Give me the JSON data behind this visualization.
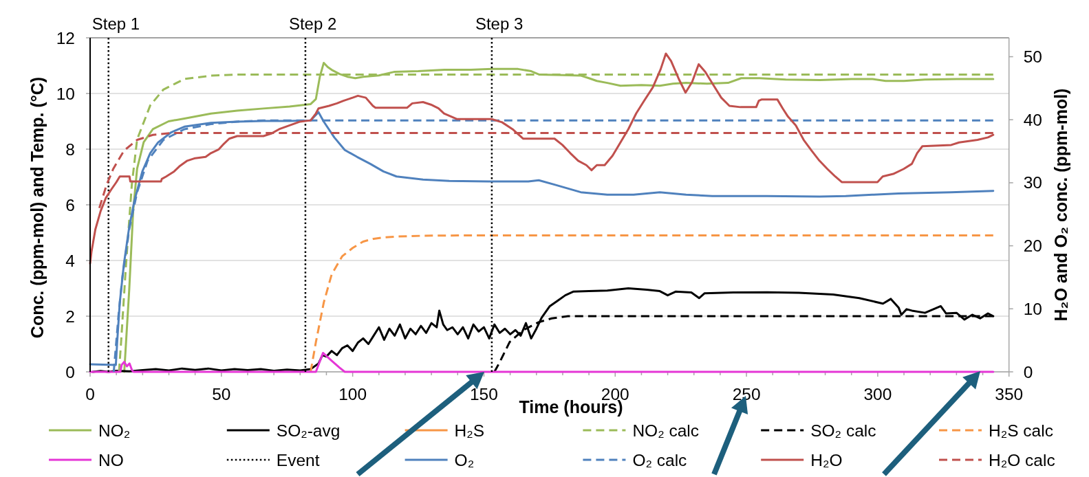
{
  "chart_data": {
    "type": "line",
    "xlabel": "Time (hours)",
    "ylabel": "Conc. (ppm-mol)  and Temp. (°C)",
    "y2label": "H₂O and O₂ conc. (ppm-mol)",
    "xlim": [
      0,
      350
    ],
    "xticks": [
      0,
      {
        "value": 10,
        "label": null
      },
      {
        "value": 20,
        "label": null
      },
      {
        "value": 30,
        "label": null
      },
      {
        "value": 40,
        "label": null
      },
      50,
      {
        "value": 60,
        "label": null
      },
      {
        "value": 70,
        "label": null
      },
      {
        "value": 80,
        "label": null
      },
      {
        "value": 90,
        "label": null
      },
      100,
      {
        "value": 110,
        "label": null
      },
      {
        "value": 120,
        "label": null
      },
      {
        "value": 130,
        "label": null
      },
      {
        "value": 140,
        "label": null
      },
      150,
      {
        "value": 160,
        "label": null
      },
      {
        "value": 170,
        "label": null
      },
      {
        "value": 180,
        "label": null
      },
      {
        "value": 190,
        "label": null
      },
      200,
      {
        "value": 210,
        "label": null
      },
      {
        "value": 220,
        "label": null
      },
      {
        "value": 230,
        "label": null
      },
      {
        "value": 240,
        "label": null
      },
      250,
      {
        "value": 260,
        "label": null
      },
      {
        "value": 270,
        "label": null
      },
      {
        "value": 280,
        "label": null
      },
      {
        "value": 290,
        "label": null
      },
      300,
      {
        "value": 310,
        "label": null
      },
      {
        "value": 320,
        "label": null
      },
      {
        "value": 330,
        "label": null
      },
      {
        "value": 340,
        "label": null
      },
      350
    ],
    "ylim": [
      0,
      12
    ],
    "yticks": [
      0,
      2,
      4,
      6,
      8,
      10,
      12
    ],
    "y2lim": [
      0,
      53
    ],
    "y2ticks": [
      0,
      10,
      20,
      30,
      40,
      50
    ],
    "grid": "y",
    "legend": "bottom",
    "annotations": [
      {
        "text": "Step 1",
        "x": 7,
        "y": 12
      },
      {
        "text": "Step 2",
        "x": 82,
        "y": 12
      },
      {
        "text": "Step 3",
        "x": 153,
        "y": 12
      }
    ],
    "series": [
      {
        "name": "NO₂",
        "color": "#9bbb59",
        "x": [
          13,
          14.9,
          16.4,
          17.9,
          20.4,
          23.9,
          29.9,
          35.9,
          46,
          56,
          66,
          76,
          84,
          86,
          87.5,
          89,
          90.5,
          92,
          95,
          98,
          101,
          104,
          110,
          116,
          125,
          135,
          145,
          153,
          163,
          168,
          171,
          180,
          187,
          190,
          193,
          197,
          202,
          210,
          217,
          222,
          227,
          235,
          243,
          248,
          255,
          265,
          278,
          290,
          298,
          303,
          310,
          318,
          330,
          344
        ],
        "values": [
          0,
          2.96,
          5.79,
          7.3,
          8.25,
          8.72,
          9.0,
          9.1,
          9.28,
          9.38,
          9.46,
          9.53,
          9.62,
          9.8,
          10.6,
          11.1,
          10.95,
          10.85,
          10.7,
          10.6,
          10.55,
          10.6,
          10.65,
          10.78,
          10.8,
          10.85,
          10.85,
          10.88,
          10.88,
          10.8,
          10.68,
          10.66,
          10.64,
          10.55,
          10.45,
          10.38,
          10.28,
          10.3,
          10.28,
          10.35,
          10.38,
          10.35,
          10.38,
          10.55,
          10.55,
          10.5,
          10.48,
          10.52,
          10.52,
          10.45,
          10.45,
          10.5,
          10.52,
          10.52
        ]
      },
      {
        "name": "SO₂-avg",
        "color": "#000000",
        "x": [
          1,
          4,
          7,
          10,
          15,
          20,
          25,
          30,
          35,
          40,
          45,
          50,
          55,
          60,
          65,
          70,
          75,
          80,
          84,
          87,
          88.5,
          90,
          92,
          94,
          96,
          98,
          100,
          102,
          104,
          106,
          108,
          110,
          112,
          114,
          116,
          118,
          120,
          122,
          124,
          126,
          128,
          130,
          132,
          133,
          134.5,
          136,
          138,
          140,
          142,
          144,
          146,
          148,
          150,
          152,
          154,
          156,
          158,
          160,
          162,
          164,
          166,
          168,
          170,
          172,
          175,
          178,
          181,
          184,
          190,
          197,
          205,
          212,
          217,
          220,
          223,
          229,
          232,
          234,
          245,
          258,
          270,
          283,
          293,
          302,
          305,
          308,
          309,
          311,
          313,
          318,
          324,
          326,
          330,
          333,
          336,
          339,
          342,
          344
        ],
        "values": [
          0,
          0.03,
          0,
          0.04,
          0.02,
          0.06,
          0.1,
          0.05,
          0.12,
          0.07,
          0.12,
          0.05,
          0.1,
          0.06,
          0.1,
          0.04,
          0.08,
          0.05,
          0.1,
          0.3,
          0.6,
          0.55,
          0.75,
          0.6,
          0.85,
          0.95,
          0.75,
          1.05,
          1.2,
          1.0,
          1.3,
          1.6,
          1.15,
          1.55,
          1.3,
          1.7,
          1.2,
          1.55,
          1.35,
          1.65,
          1.4,
          1.75,
          1.6,
          2.2,
          1.7,
          1.5,
          1.6,
          1.35,
          1.6,
          1.2,
          1.7,
          1.45,
          1.6,
          1.2,
          1.7,
          1.4,
          1.55,
          1.35,
          1.5,
          1.3,
          1.75,
          1.2,
          1.55,
          1.95,
          2.35,
          2.55,
          2.75,
          2.88,
          2.9,
          2.92,
          3.0,
          2.95,
          2.9,
          2.75,
          2.88,
          2.85,
          2.65,
          2.82,
          2.85,
          2.86,
          2.84,
          2.78,
          2.65,
          2.45,
          2.62,
          2.3,
          2.05,
          2.25,
          2.2,
          2.12,
          2.36,
          2.1,
          2.12,
          1.88,
          2.05,
          1.92,
          2.1,
          2.0
        ]
      },
      {
        "name": "H₂S",
        "color": "#f79646"
      },
      {
        "name": "NO₂ calc",
        "color": "#9bbb59",
        "line_style": "dashed",
        "x": [
          11,
          11.8,
          13.7,
          15.9,
          17.9,
          22.9,
          27.9,
          35.9,
          46,
          56,
          344
        ],
        "values": [
          0,
          1.07,
          3.9,
          6.74,
          8.35,
          9.57,
          10.14,
          10.52,
          10.64,
          10.68,
          10.68
        ]
      },
      {
        "name": "SO₂ calc",
        "color": "#000000",
        "line_style": "dashed",
        "x": [
          154,
          155.8,
          159.8,
          165,
          170.8,
          175.8,
          182,
          344
        ],
        "values": [
          0,
          0.31,
          1.07,
          1.5,
          1.78,
          1.92,
          2.0,
          2.0
        ]
      },
      {
        "name": "H₂S calc",
        "color": "#f79646",
        "line_style": "dashed",
        "x": [
          84,
          86,
          89,
          92,
          96,
          100,
          104,
          108,
          112,
          117,
          127,
          140,
          344
        ],
        "values": [
          0,
          1.07,
          2.49,
          3.5,
          4.15,
          4.45,
          4.68,
          4.78,
          4.83,
          4.86,
          4.89,
          4.9,
          4.9
        ]
      },
      {
        "name": "NO",
        "color": "#e536d6",
        "x": [
          0,
          11.5,
          12,
          13,
          14,
          15,
          16,
          16.5,
          86,
          88.7,
          92,
          95,
          97,
          344
        ],
        "values": [
          0,
          0,
          0.25,
          0.36,
          0.2,
          0.3,
          0.05,
          0,
          0,
          0.68,
          0.4,
          0.15,
          0,
          0
        ]
      },
      {
        "name": "Event",
        "color": "#000000",
        "line_style": "dotted",
        "x": [
          7,
          7,
          null,
          82,
          82,
          null,
          153,
          153
        ],
        "values": [
          0,
          12,
          null,
          0,
          12,
          null,
          0,
          12
        ]
      },
      {
        "name": "O₂",
        "color": "#4f81bd",
        "axis": "y2",
        "x": [
          0,
          9.8,
          10.3,
          11.3,
          12.9,
          14.9,
          16.9,
          19.9,
          22.9,
          25.9,
          30.9,
          35.9,
          46,
          56,
          66,
          76,
          84,
          87,
          89,
          93,
          97,
          101.7,
          106.7,
          111.7,
          116.7,
          126.8,
          136.8,
          151.8,
          166.9,
          170.9,
          176.9,
          186.9,
          197,
          207,
          217,
          227,
          237,
          257.7,
          277.8,
          287.8,
          297.9,
          307.9,
          328,
          344
        ],
        "values": [
          1.2,
          1.1,
          4.7,
          11,
          17.2,
          23,
          27.2,
          31.8,
          34.7,
          36.4,
          38,
          38.9,
          39.5,
          39.7,
          39.8,
          39.8,
          39.9,
          41.2,
          39.7,
          37.2,
          35.2,
          34.1,
          33,
          31.8,
          31,
          30.5,
          30.3,
          30.2,
          30.2,
          30.4,
          29.7,
          28.5,
          28.1,
          28.1,
          28.5,
          28.1,
          27.9,
          27.9,
          27.8,
          27.9,
          28.1,
          28.3,
          28.5,
          28.7
        ]
      },
      {
        "name": "O₂ calc",
        "color": "#4f81bd",
        "axis": "y2",
        "line_style": "dashed",
        "x": [
          9,
          10.8,
          12.3,
          14.9,
          17.9,
          21.9,
          27.9,
          35.9,
          46,
          56,
          66,
          344
        ],
        "values": [
          0,
          8.9,
          15.1,
          22.6,
          28.5,
          33.5,
          36.8,
          38.5,
          39.3,
          39.7,
          39.9,
          39.9
        ]
      },
      {
        "name": "H₂O",
        "color": "#c0504d",
        "axis": "y2",
        "x": [
          0,
          0.5,
          2,
          4,
          6,
          8,
          10,
          11.3,
          15,
          15.3,
          27,
          27.3,
          29,
          32,
          34,
          37,
          40,
          44,
          46,
          49,
          51,
          53,
          56,
          66,
          69,
          72,
          76,
          80,
          84,
          86,
          87,
          91,
          94,
          96.5,
          100,
          102,
          105,
          107.7,
          108.7,
          120.7,
          122.7,
          126.8,
          129.8,
          132.7,
          134.8,
          139.8,
          152.9,
          156.9,
          160.9,
          164.9,
          176.9,
          179.9,
          182.9,
          185.9,
          189,
          191,
          193,
          196,
          199,
          202,
          205,
          208,
          211,
          214.3,
          217.3,
          219.3,
          221.3,
          224.3,
          226.8,
          229.3,
          231.8,
          234.3,
          237.4,
          240.4,
          243.5,
          247.7,
          253.7,
          254.7,
          255.7,
          261.8,
          263.8,
          265.8,
          268.8,
          271.8,
          274.8,
          277.8,
          280.8,
          283.8,
          286.3,
          299.9,
          301.9,
          305.9,
          309.9,
          313,
          315,
          317,
          328,
          331,
          338,
          342,
          344
        ],
        "values": [
          17.2,
          19,
          22.6,
          25.5,
          27.6,
          28.9,
          30.1,
          31,
          31,
          30.2,
          30.2,
          30.6,
          31,
          31.8,
          32.6,
          33.5,
          33.9,
          34.1,
          34.7,
          35.3,
          36.2,
          37,
          37.4,
          37.4,
          37.8,
          38.5,
          39.1,
          39.7,
          39.9,
          41,
          41.8,
          42.2,
          42.6,
          43,
          43.5,
          43.8,
          43.5,
          42.2,
          41.9,
          41.9,
          42.6,
          42.8,
          42.4,
          41.8,
          41,
          40.1,
          40.1,
          39.6,
          38.5,
          37,
          37,
          36,
          34.7,
          33.5,
          32.8,
          32,
          32.8,
          32.8,
          34.3,
          36.4,
          38.5,
          41,
          43,
          45.1,
          48,
          50.5,
          49.3,
          46.4,
          44.3,
          46,
          48.8,
          47.6,
          45.5,
          43.5,
          42.2,
          42,
          42,
          43,
          43.2,
          43.2,
          41.8,
          40.5,
          39.1,
          36.8,
          35.1,
          33.5,
          32.2,
          31,
          30.1,
          30.1,
          31,
          31.4,
          32.2,
          33,
          34.7,
          35.8,
          36,
          36.4,
          36.8,
          37.2,
          37.6
        ]
      },
      {
        "name": "H₂O calc",
        "color": "#c0504d",
        "axis": "y2",
        "line_style": "dashed",
        "x": [
          3.5,
          6.3,
          8.8,
          12.9,
          17.9,
          23.9,
          30.9,
          344
        ],
        "values": [
          26,
          29.7,
          32.2,
          35.1,
          36.8,
          37.6,
          37.9,
          37.9
        ]
      }
    ]
  }
}
